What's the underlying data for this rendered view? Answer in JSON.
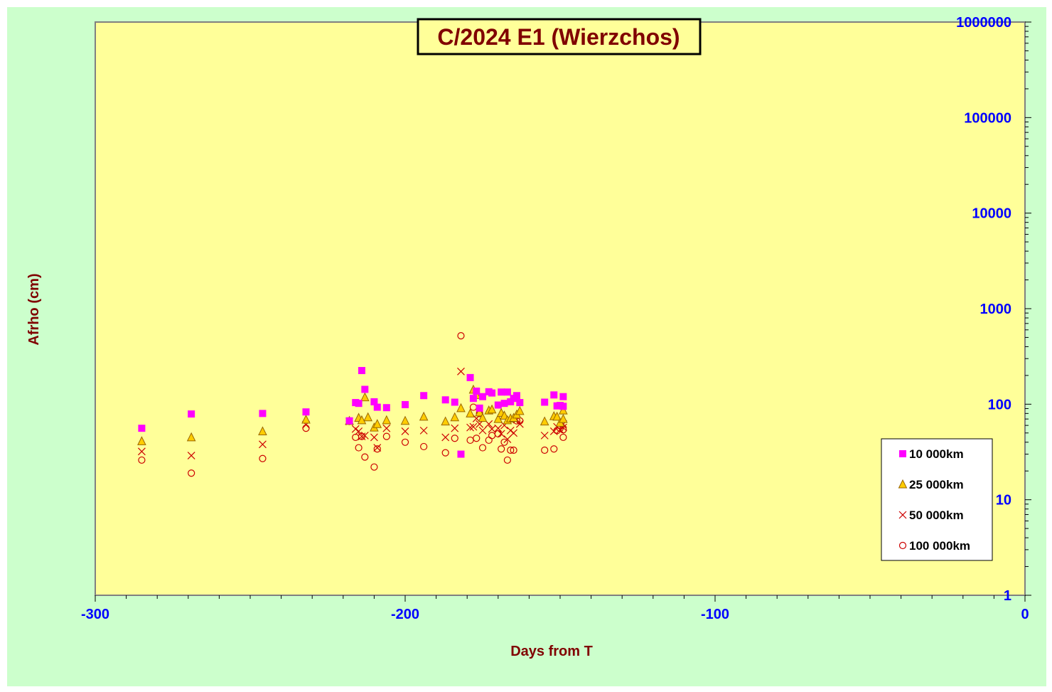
{
  "colors": {
    "background": "#ccffcc",
    "plot_area": "#ffff99",
    "title_text": "#800000",
    "axis_title": "#800000",
    "tick_label": "#0000ff",
    "series_10000": "#ff00ff",
    "series_25000": "#ffcc00",
    "series_50000": "#cc0000",
    "series_100000": "#cc0000"
  },
  "chart_data": {
    "type": "scatter",
    "title": "C/2024 E1 (Wierzchos)",
    "xlabel": "Days from T",
    "ylabel": "Afrho (cm)",
    "xlim": [
      -300,
      0
    ],
    "ylim": [
      1,
      1000000
    ],
    "yscale": "log",
    "x_ticks": [
      "-300",
      "-200",
      "-100",
      "0"
    ],
    "y_ticks": [
      "1",
      "10",
      "100",
      "1000",
      "10000",
      "100000",
      "1000000"
    ],
    "legend_position": "right",
    "series": [
      {
        "name": "10 000km",
        "marker": "square",
        "points": [
          [
            -285,
            56
          ],
          [
            -269,
            79
          ],
          [
            -246,
            80
          ],
          [
            -232,
            83
          ],
          [
            -218,
            67
          ],
          [
            -216,
            104
          ],
          [
            -215,
            102
          ],
          [
            -214,
            225
          ],
          [
            -213,
            143
          ],
          [
            -210,
            106
          ],
          [
            -209,
            93
          ],
          [
            -206,
            92
          ],
          [
            -200,
            99
          ],
          [
            -194,
            123
          ],
          [
            -187,
            111
          ],
          [
            -184,
            105
          ],
          [
            -182,
            30
          ],
          [
            -179,
            190
          ],
          [
            -178,
            115
          ],
          [
            -177,
            137
          ],
          [
            -176,
            91
          ],
          [
            -175,
            120
          ],
          [
            -173,
            135
          ],
          [
            -172,
            131
          ],
          [
            -170,
            98
          ],
          [
            -169,
            134
          ],
          [
            -168,
            102
          ],
          [
            -167,
            134
          ],
          [
            -166,
            106
          ],
          [
            -165,
            115
          ],
          [
            -164,
            123
          ],
          [
            -163,
            104
          ],
          [
            -155,
            105
          ],
          [
            -152,
            125
          ],
          [
            -151,
            96
          ],
          [
            -150,
            97
          ],
          [
            -149,
            120
          ],
          [
            -149,
            95
          ]
        ]
      },
      {
        "name": "25 000km",
        "marker": "triangle",
        "points": [
          [
            -285,
            41
          ],
          [
            -269,
            45
          ],
          [
            -246,
            52
          ],
          [
            -232,
            69
          ],
          [
            -218,
            67
          ],
          [
            -215,
            72
          ],
          [
            -214,
            68
          ],
          [
            -213,
            118
          ],
          [
            -212,
            73
          ],
          [
            -210,
            57
          ],
          [
            -209,
            62
          ],
          [
            -206,
            68
          ],
          [
            -200,
            67
          ],
          [
            -194,
            74
          ],
          [
            -187,
            66
          ],
          [
            -184,
            73
          ],
          [
            -182,
            91
          ],
          [
            -179,
            80
          ],
          [
            -178,
            142
          ],
          [
            -177,
            125
          ],
          [
            -176,
            82
          ],
          [
            -175,
            72
          ],
          [
            -173,
            86
          ],
          [
            -172,
            88
          ],
          [
            -170,
            70
          ],
          [
            -169,
            81
          ],
          [
            -168,
            76
          ],
          [
            -167,
            68
          ],
          [
            -166,
            71
          ],
          [
            -165,
            72
          ],
          [
            -164,
            78
          ],
          [
            -163,
            85
          ],
          [
            -155,
            66
          ],
          [
            -152,
            75
          ],
          [
            -151,
            74
          ],
          [
            -150,
            64
          ],
          [
            -149,
            70
          ],
          [
            -149,
            86
          ]
        ]
      },
      {
        "name": "50 000km",
        "marker": "x",
        "points": [
          [
            -285,
            32
          ],
          [
            -269,
            29
          ],
          [
            -246,
            38
          ],
          [
            -232,
            61
          ],
          [
            -218,
            66
          ],
          [
            -216,
            55
          ],
          [
            -215,
            52
          ],
          [
            -214,
            46
          ],
          [
            -213,
            47
          ],
          [
            -210,
            45
          ],
          [
            -209,
            35
          ],
          [
            -206,
            56
          ],
          [
            -200,
            52
          ],
          [
            -194,
            53
          ],
          [
            -187,
            45
          ],
          [
            -184,
            56
          ],
          [
            -182,
            220
          ],
          [
            -179,
            57
          ],
          [
            -178,
            58
          ],
          [
            -177,
            71
          ],
          [
            -176,
            62
          ],
          [
            -175,
            53
          ],
          [
            -173,
            62
          ],
          [
            -172,
            55
          ],
          [
            -170,
            56
          ],
          [
            -169,
            49
          ],
          [
            -168,
            60
          ],
          [
            -167,
            43
          ],
          [
            -166,
            53
          ],
          [
            -165,
            50
          ],
          [
            -164,
            69
          ],
          [
            -163,
            62
          ],
          [
            -155,
            47
          ],
          [
            -152,
            52
          ],
          [
            -151,
            58
          ],
          [
            -150,
            54
          ],
          [
            -149,
            57
          ],
          [
            -149,
            62
          ]
        ]
      },
      {
        "name": "100 000km",
        "marker": "circle",
        "points": [
          [
            -285,
            26
          ],
          [
            -269,
            19
          ],
          [
            -246,
            27
          ],
          [
            -232,
            56
          ],
          [
            -218,
            66
          ],
          [
            -216,
            45
          ],
          [
            -215,
            35
          ],
          [
            -214,
            46
          ],
          [
            -213,
            28
          ],
          [
            -210,
            22
          ],
          [
            -209,
            34
          ],
          [
            -206,
            46
          ],
          [
            -200,
            40
          ],
          [
            -194,
            36
          ],
          [
            -187,
            31
          ],
          [
            -184,
            44
          ],
          [
            -182,
            520
          ],
          [
            -179,
            42
          ],
          [
            -178,
            93
          ],
          [
            -177,
            44
          ],
          [
            -176,
            80
          ],
          [
            -175,
            35
          ],
          [
            -173,
            42
          ],
          [
            -172,
            47
          ],
          [
            -170,
            49
          ],
          [
            -169,
            34
          ],
          [
            -168,
            40
          ],
          [
            -167,
            26
          ],
          [
            -166,
            33
          ],
          [
            -165,
            33
          ],
          [
            -164,
            67
          ],
          [
            -163,
            67
          ],
          [
            -155,
            33
          ],
          [
            -152,
            34
          ],
          [
            -151,
            53
          ],
          [
            -150,
            56
          ],
          [
            -149,
            45
          ],
          [
            -149,
            54
          ]
        ]
      }
    ]
  }
}
